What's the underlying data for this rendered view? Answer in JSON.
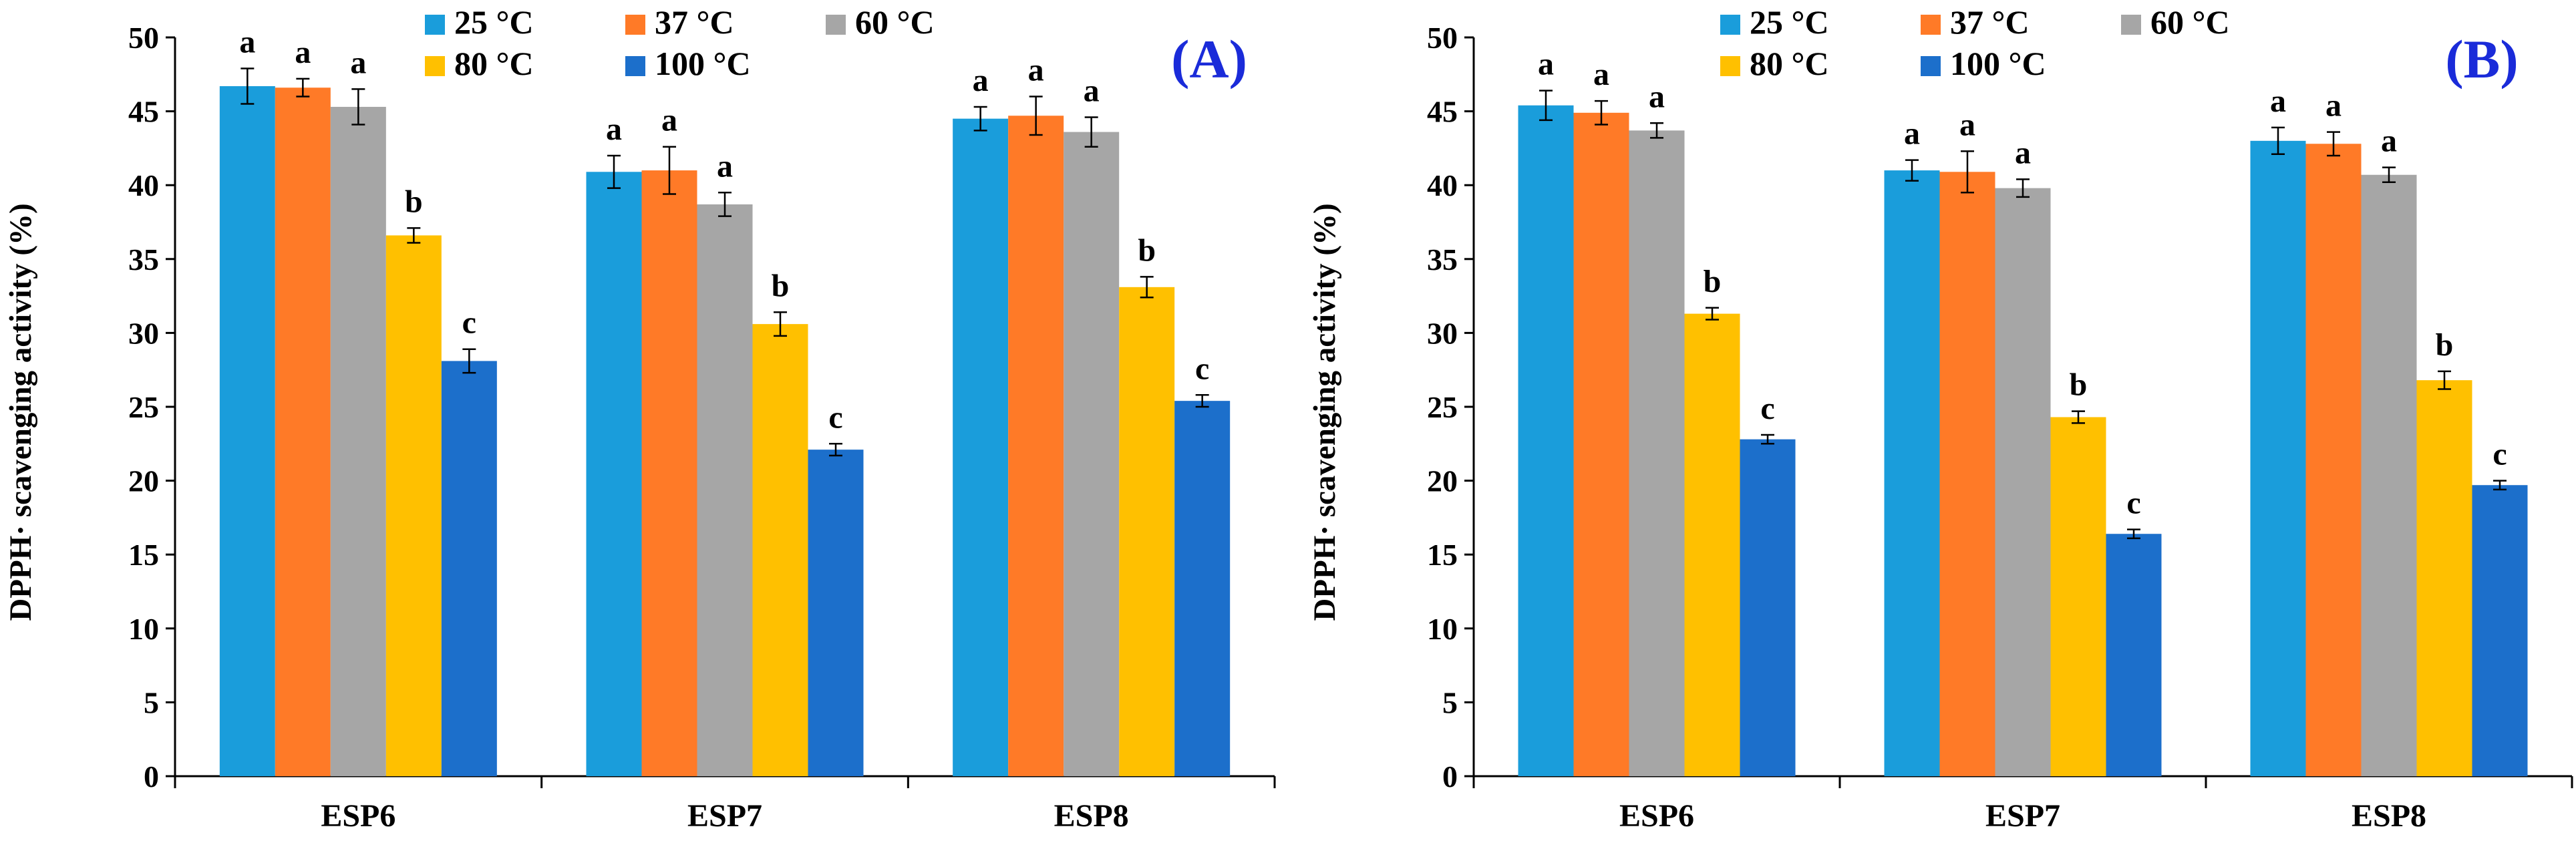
{
  "colors": {
    "series": [
      "#1A9DDB",
      "#FF7A27",
      "#A6A6A6",
      "#FFC000",
      "#1C6FCB"
    ],
    "panel_label": "#1A2BD9",
    "axis": "#000000"
  },
  "chart_data": [
    {
      "type": "bar",
      "panel_label": "(A)",
      "title": "",
      "xlabel": "",
      "ylabel": "DPPH· scavenging activity (%)",
      "ylim": [
        0,
        50
      ],
      "yticks": [
        "0",
        "5",
        "10",
        "15",
        "20",
        "25",
        "30",
        "35",
        "40",
        "45",
        "50"
      ],
      "categories": [
        "ESP6",
        "ESP7",
        "ESP8"
      ],
      "legend_position": "top-right",
      "series": [
        {
          "name": "25 °C",
          "values": [
            46.7,
            40.9,
            44.5
          ],
          "errors": [
            1.2,
            1.1,
            0.8
          ],
          "letters": [
            "a",
            "a",
            "a"
          ]
        },
        {
          "name": "37 °C",
          "values": [
            46.6,
            41.0,
            44.7
          ],
          "errors": [
            0.6,
            1.6,
            1.3
          ],
          "letters": [
            "a",
            "a",
            "a"
          ]
        },
        {
          "name": "60 °C",
          "values": [
            45.3,
            38.7,
            43.6
          ],
          "errors": [
            1.2,
            0.8,
            1.0
          ],
          "letters": [
            "a",
            "a",
            "a"
          ]
        },
        {
          "name": "80 °C",
          "values": [
            36.6,
            30.6,
            33.1
          ],
          "errors": [
            0.5,
            0.8,
            0.7
          ],
          "letters": [
            "b",
            "b",
            "b"
          ]
        },
        {
          "name": "100 °C",
          "values": [
            28.1,
            22.1,
            25.4
          ],
          "errors": [
            0.8,
            0.4,
            0.4
          ],
          "letters": [
            "c",
            "c",
            "c"
          ]
        }
      ]
    },
    {
      "type": "bar",
      "panel_label": "(B)",
      "title": "",
      "xlabel": "",
      "ylabel": "DPPH· scavenging activity (%)",
      "ylim": [
        0,
        50
      ],
      "yticks": [
        "0",
        "5",
        "10",
        "15",
        "20",
        "25",
        "30",
        "35",
        "40",
        "45",
        "50"
      ],
      "categories": [
        "ESP6",
        "ESP7",
        "ESP8"
      ],
      "legend_position": "top-right",
      "series": [
        {
          "name": "25 °C",
          "values": [
            45.4,
            41.0,
            43.0
          ],
          "errors": [
            1.0,
            0.7,
            0.9
          ],
          "letters": [
            "a",
            "a",
            "a"
          ]
        },
        {
          "name": "37 °C",
          "values": [
            44.9,
            40.9,
            42.8
          ],
          "errors": [
            0.8,
            1.4,
            0.8
          ],
          "letters": [
            "a",
            "a",
            "a"
          ]
        },
        {
          "name": "60 °C",
          "values": [
            43.7,
            39.8,
            40.7
          ],
          "errors": [
            0.5,
            0.6,
            0.5
          ],
          "letters": [
            "a",
            "a",
            "a"
          ]
        },
        {
          "name": "80 °C",
          "values": [
            31.3,
            24.3,
            26.8
          ],
          "errors": [
            0.4,
            0.4,
            0.6
          ],
          "letters": [
            "b",
            "b",
            "b"
          ]
        },
        {
          "name": "100 °C",
          "values": [
            22.8,
            16.4,
            19.7
          ],
          "errors": [
            0.3,
            0.3,
            0.3
          ],
          "letters": [
            "c",
            "c",
            "c"
          ]
        }
      ]
    }
  ]
}
